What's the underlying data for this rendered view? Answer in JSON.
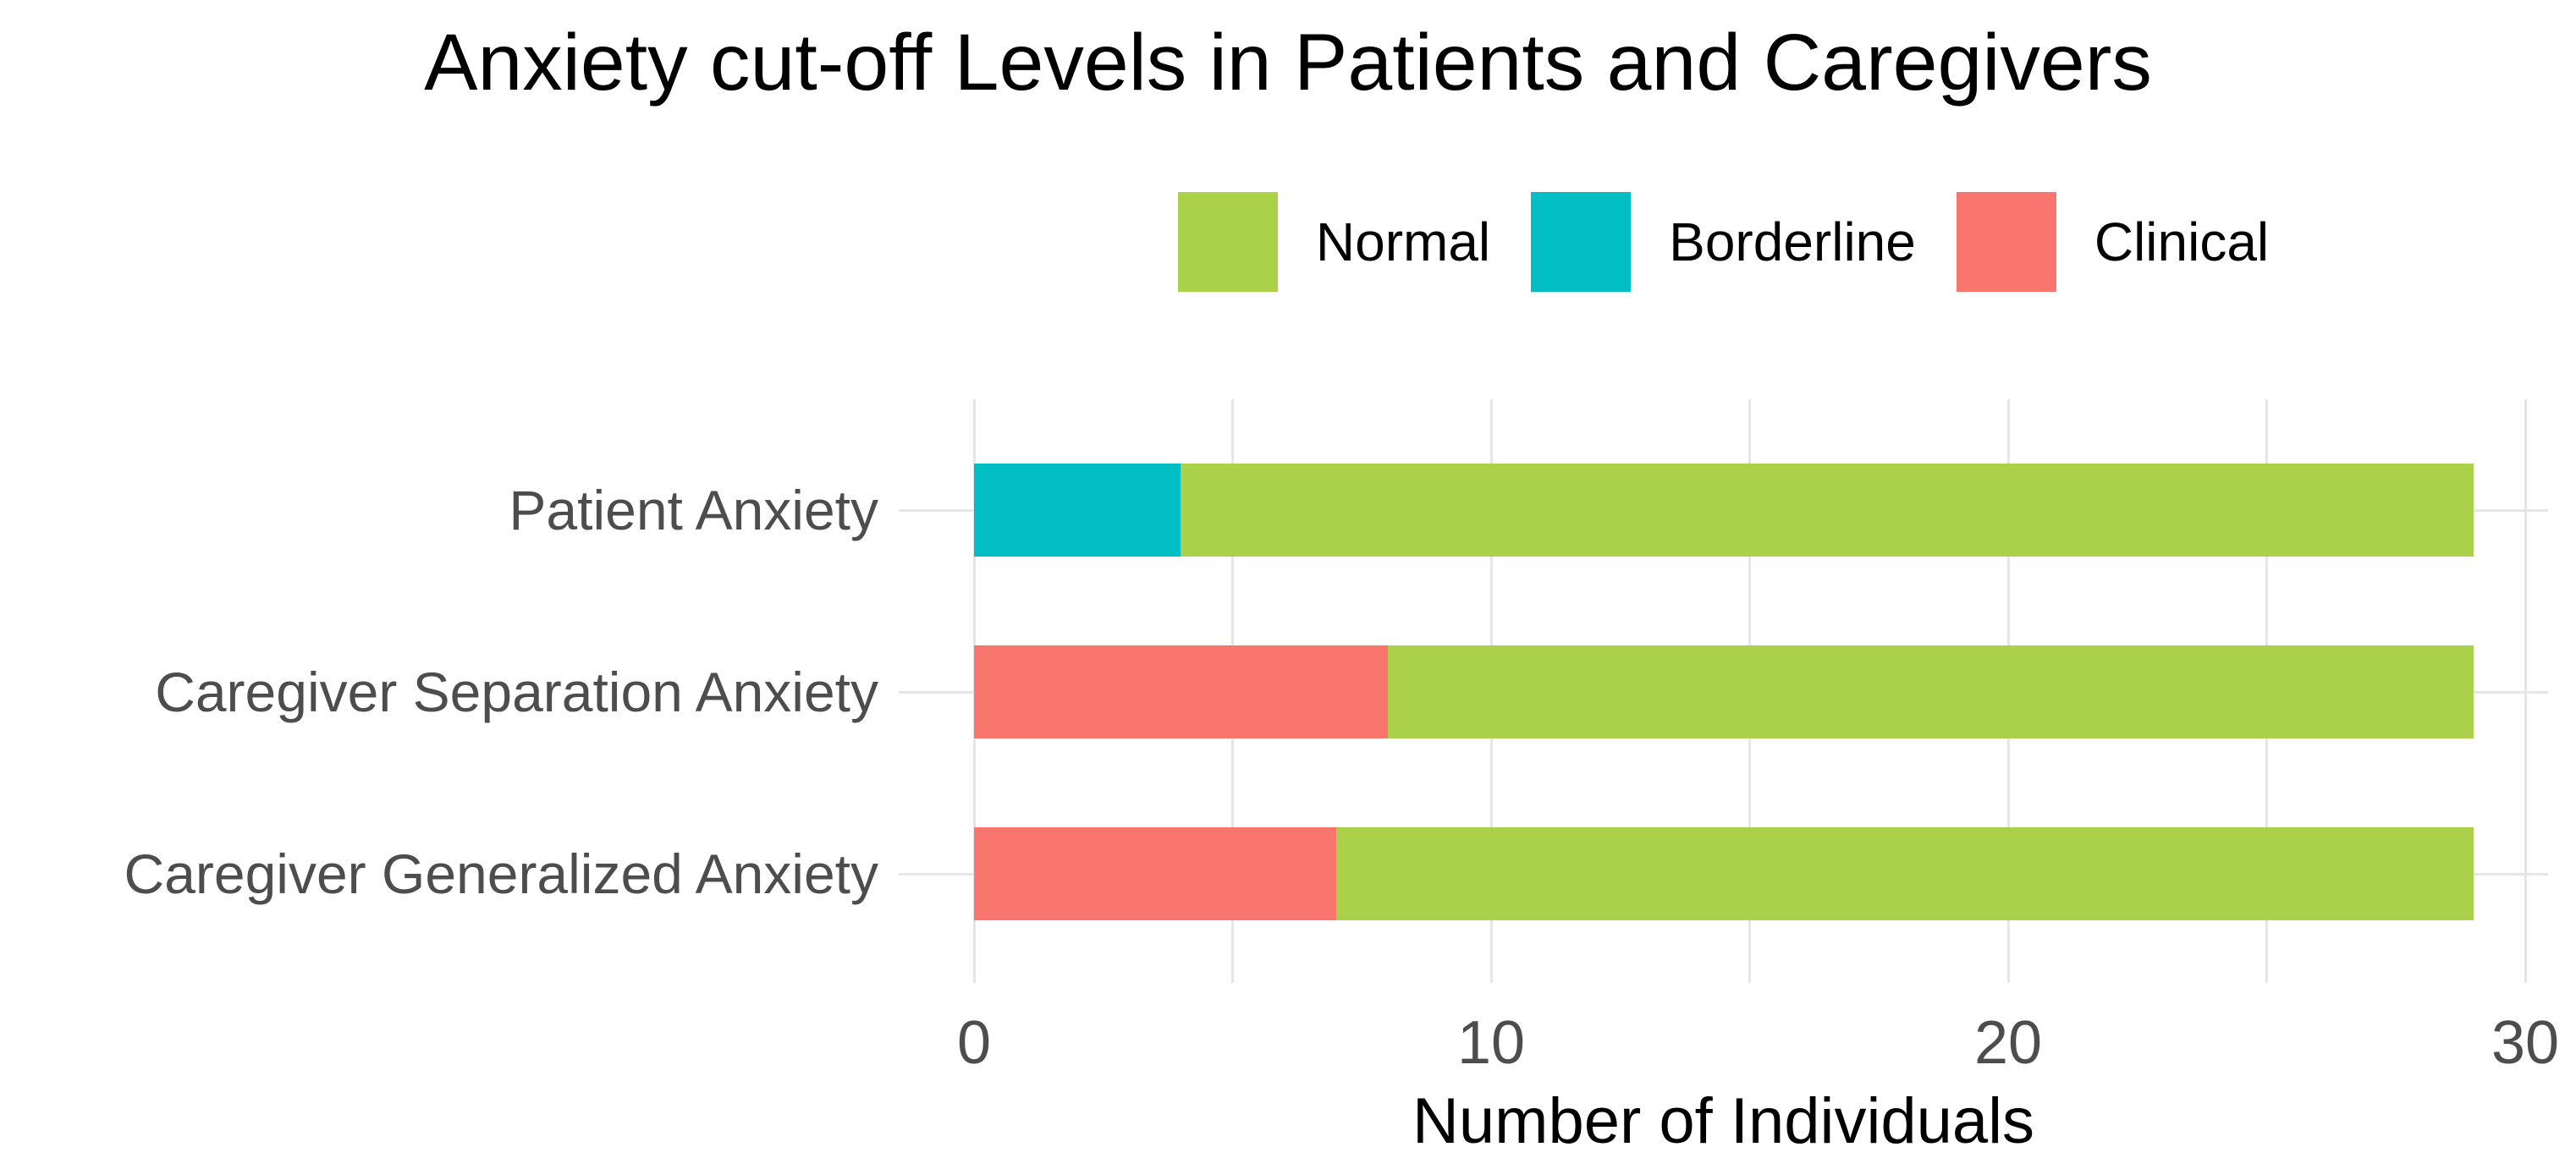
{
  "chart_data": {
    "type": "bar",
    "orientation": "horizontal",
    "stacked": true,
    "title": "Anxiety cut-off Levels in Patients and Caregivers",
    "xlabel": "Number of Individuals",
    "ylabel": "",
    "xlim": [
      0,
      30
    ],
    "xticks": [
      0,
      10,
      20,
      30
    ],
    "gridlines_x": [
      0,
      5,
      10,
      15,
      20,
      25,
      30
    ],
    "grid": "on",
    "legend_position": "top",
    "levels": [
      {
        "name": "Normal",
        "color": "#ABD04A"
      },
      {
        "name": "Borderline",
        "color": "#00BEC4"
      },
      {
        "name": "Clinical",
        "color": "#F8766D"
      }
    ],
    "categories": [
      "Patient Anxiety",
      "Caregiver Separation Anxiety",
      "Caregiver Generalized Anxiety"
    ],
    "rows": [
      {
        "category": "Patient Anxiety",
        "segments": [
          {
            "level": "Borderline",
            "value": 4
          },
          {
            "level": "Normal",
            "value": 25
          }
        ],
        "total": 29
      },
      {
        "category": "Caregiver Separation Anxiety",
        "segments": [
          {
            "level": "Clinical",
            "value": 8
          },
          {
            "level": "Normal",
            "value": 21
          }
        ],
        "total": 29
      },
      {
        "category": "Caregiver Generalized Anxiety",
        "segments": [
          {
            "level": "Clinical",
            "value": 7
          },
          {
            "level": "Normal",
            "value": 22
          }
        ],
        "total": 29
      }
    ],
    "colors": {
      "grid": "#E6E6E6",
      "axis_text": "#4D4D4D",
      "title_text": "#000000"
    }
  }
}
